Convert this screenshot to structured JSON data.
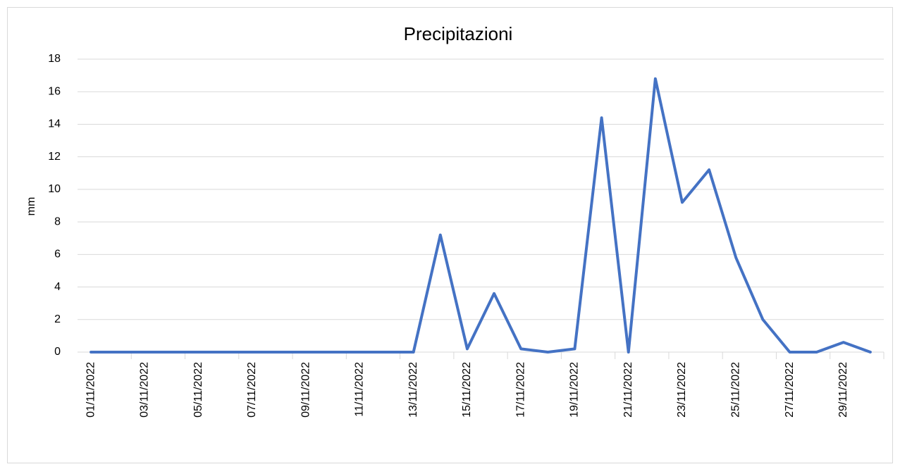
{
  "chart_data": {
    "type": "line",
    "title": "Precipitazioni",
    "y_label": "mm",
    "categories": [
      "01/11/2022",
      null,
      "03/11/2022",
      null,
      "05/11/2022",
      null,
      "07/11/2022",
      null,
      "09/11/2022",
      null,
      "11/11/2022",
      null,
      "13/11/2022",
      null,
      "15/11/2022",
      null,
      "17/11/2022",
      null,
      "19/11/2022",
      null,
      "21/11/2022",
      null,
      "23/11/2022",
      null,
      "25/11/2022",
      null,
      "27/11/2022",
      null,
      "29/11/2022",
      null
    ],
    "values": [
      0,
      0,
      0,
      0,
      0,
      0,
      0,
      0,
      0,
      0,
      0,
      0,
      0,
      7.2,
      0.2,
      3.6,
      0.2,
      0,
      0.2,
      14.4,
      0,
      16.8,
      9.2,
      11.2,
      5.8,
      2.0,
      0,
      0,
      0.6,
      0
    ],
    "color": "#4472c4",
    "ylim": [
      0,
      18
    ],
    "yticks": [
      0,
      2,
      4,
      6,
      8,
      10,
      12,
      14,
      16,
      18
    ],
    "grid": true
  }
}
